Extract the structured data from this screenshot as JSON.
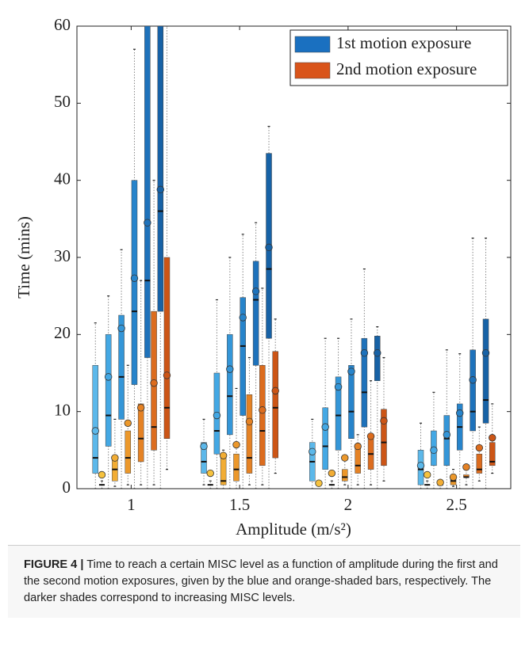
{
  "chart_data": {
    "type": "box",
    "x_label": "Amplitude (m/s²)",
    "y_label": "Time (mins)",
    "categories": [
      "1",
      "1.5",
      "2",
      "2.5"
    ],
    "ylim": [
      0,
      60
    ],
    "yticks": [
      0,
      10,
      20,
      30,
      40,
      50,
      60
    ],
    "legend_position": "upper right",
    "series": [
      {
        "name": "1st motion exposure",
        "color": "#1a70c0",
        "levels": [
          {
            "color": "#5cb8ea",
            "min": [
              0,
              0.5,
              0,
              0
            ],
            "q1": [
              2,
              2,
              1,
              0.5
            ],
            "median": [
              4,
              3.5,
              3.5,
              2.5
            ],
            "q3": [
              16,
              6,
              6,
              5
            ],
            "max": [
              21.5,
              9,
              9,
              8.5
            ],
            "mean": [
              7.5,
              5.5,
              4.8,
              3
            ]
          },
          {
            "color": "#44a8e4",
            "min": [
              0,
              0,
              0,
              0
            ],
            "q1": [
              5.5,
              4.5,
              2.5,
              3
            ],
            "median": [
              9.5,
              7.5,
              5.5,
              5
            ],
            "q3": [
              20,
              15,
              10.5,
              7.5
            ],
            "max": [
              25,
              24.5,
              19.5,
              12.5
            ],
            "mean": [
              14.5,
              9.5,
              8,
              5
            ]
          },
          {
            "color": "#3496d8",
            "min": [
              0,
              0,
              0,
              0
            ],
            "q1": [
              9,
              7,
              5,
              3
            ],
            "median": [
              14.5,
              12,
              9.5,
              6.5
            ],
            "q3": [
              22.5,
              20,
              14.5,
              9.5
            ],
            "max": [
              31,
              30,
              19.5,
              18
            ],
            "mean": [
              20.8,
              15.5,
              13.2,
              7
            ]
          },
          {
            "color": "#2784cb",
            "min": [
              0,
              0,
              0,
              0
            ],
            "q1": [
              13.5,
              9.5,
              6.5,
              5
            ],
            "median": [
              23,
              18.5,
              10,
              8
            ],
            "q3": [
              40,
              24.8,
              16,
              11
            ],
            "max": [
              57,
              33,
              22,
              17.5
            ],
            "mean": [
              27.3,
              22.2,
              15.2,
              9.8
            ]
          },
          {
            "color": "#1e72bb",
            "min": [
              0,
              0,
              0,
              0
            ],
            "q1": [
              17,
              16,
              8,
              7.5
            ],
            "median": [
              27,
              24.5,
              12.5,
              10
            ],
            "q3": [
              60,
              29.5,
              19.5,
              18
            ],
            "max": [
              60,
              34.5,
              28.5,
              32.5
            ],
            "mean": [
              34.5,
              25.6,
              17.6,
              14.1
            ]
          },
          {
            "color": "#1762a6",
            "min": [
              0,
              0,
              0,
              0
            ],
            "q1": [
              23,
              19.5,
              14,
              8.5
            ],
            "median": [
              36,
              28.5,
              17.5,
              11.5
            ],
            "q3": [
              60,
              43.5,
              19.8,
              22
            ],
            "max": [
              60,
              47,
              21,
              32.5
            ],
            "mean": [
              38.8,
              31.3,
              17.6,
              17.6
            ]
          }
        ]
      },
      {
        "name": "2nd motion exposure",
        "color": "#d9541a",
        "levels": [
          {
            "color": "#f6c23e",
            "min": [
              0,
              0,
              0.5,
              0
            ],
            "q1": [
              0.5,
              0.5,
              0.5,
              0.5
            ],
            "median": [
              0.5,
              0.5,
              0.5,
              0.5
            ],
            "q3": [
              0.5,
              0.5,
              0.5,
              0.5
            ],
            "max": [
              1,
              1,
              1,
              1
            ],
            "mean": [
              1.8,
              2,
              0.7,
              1.8
            ]
          },
          {
            "color": "#f2ad34",
            "min": [
              0.3,
              0,
              0,
              0
            ],
            "q1": [
              1,
              0.5,
              0.5,
              0.5
            ],
            "median": [
              2.5,
              1,
              0.5,
              0.5
            ],
            "q3": [
              4,
              4,
              0.5,
              0.5
            ],
            "max": [
              9,
              5,
              1,
              1
            ],
            "mean": [
              4,
              4.3,
              2,
              0.8
            ]
          },
          {
            "color": "#ec982b",
            "min": [
              0.5,
              0,
              0.5,
              0.3
            ],
            "q1": [
              2,
              1,
              1,
              0.5
            ],
            "median": [
              4,
              2.5,
              1.5,
              1
            ],
            "q3": [
              7.5,
              4.5,
              2.5,
              1.5
            ],
            "max": [
              16,
              13,
              4,
              2.5
            ],
            "mean": [
              8.5,
              5.7,
              4,
              1.5
            ]
          },
          {
            "color": "#e58224",
            "min": [
              0.5,
              0.5,
              0.5,
              0.5
            ],
            "q1": [
              3.5,
              2,
              2,
              1.5
            ],
            "median": [
              6.5,
              4,
              3,
              1.5
            ],
            "q3": [
              11,
              12.2,
              5.5,
              1.8
            ],
            "max": [
              27,
              17,
              7,
              2.5
            ],
            "mean": [
              10.5,
              8.7,
              5.5,
              2.8
            ]
          },
          {
            "color": "#dc6c1e",
            "min": [
              0.5,
              0.5,
              0.5,
              1
            ],
            "q1": [
              5,
              3,
              2.5,
              2
            ],
            "median": [
              8,
              7.5,
              4.5,
              2.5
            ],
            "q3": [
              23,
              16,
              6.5,
              4.5
            ],
            "max": [
              40,
              26,
              14,
              8
            ],
            "mean": [
              13.7,
              10.2,
              6.8,
              5.3
            ]
          },
          {
            "color": "#cc5516",
            "min": [
              2.5,
              2,
              1,
              2
            ],
            "q1": [
              6.5,
              4,
              3,
              3
            ],
            "median": [
              10.5,
              10.5,
              6,
              3.5
            ],
            "q3": [
              30,
              17.8,
              10.3,
              6
            ],
            "max": [
              60,
              22,
              17,
              11
            ],
            "mean": [
              14.7,
              12.7,
              8.8,
              6.6
            ]
          }
        ]
      }
    ]
  },
  "caption": {
    "label": "FIGURE 4 |",
    "text": "Time to reach a certain MISC level as a function of amplitude during the first and the second motion exposures, given by the blue and orange-shaded bars, respectively. The darker shades correspond to increasing MISC levels."
  }
}
